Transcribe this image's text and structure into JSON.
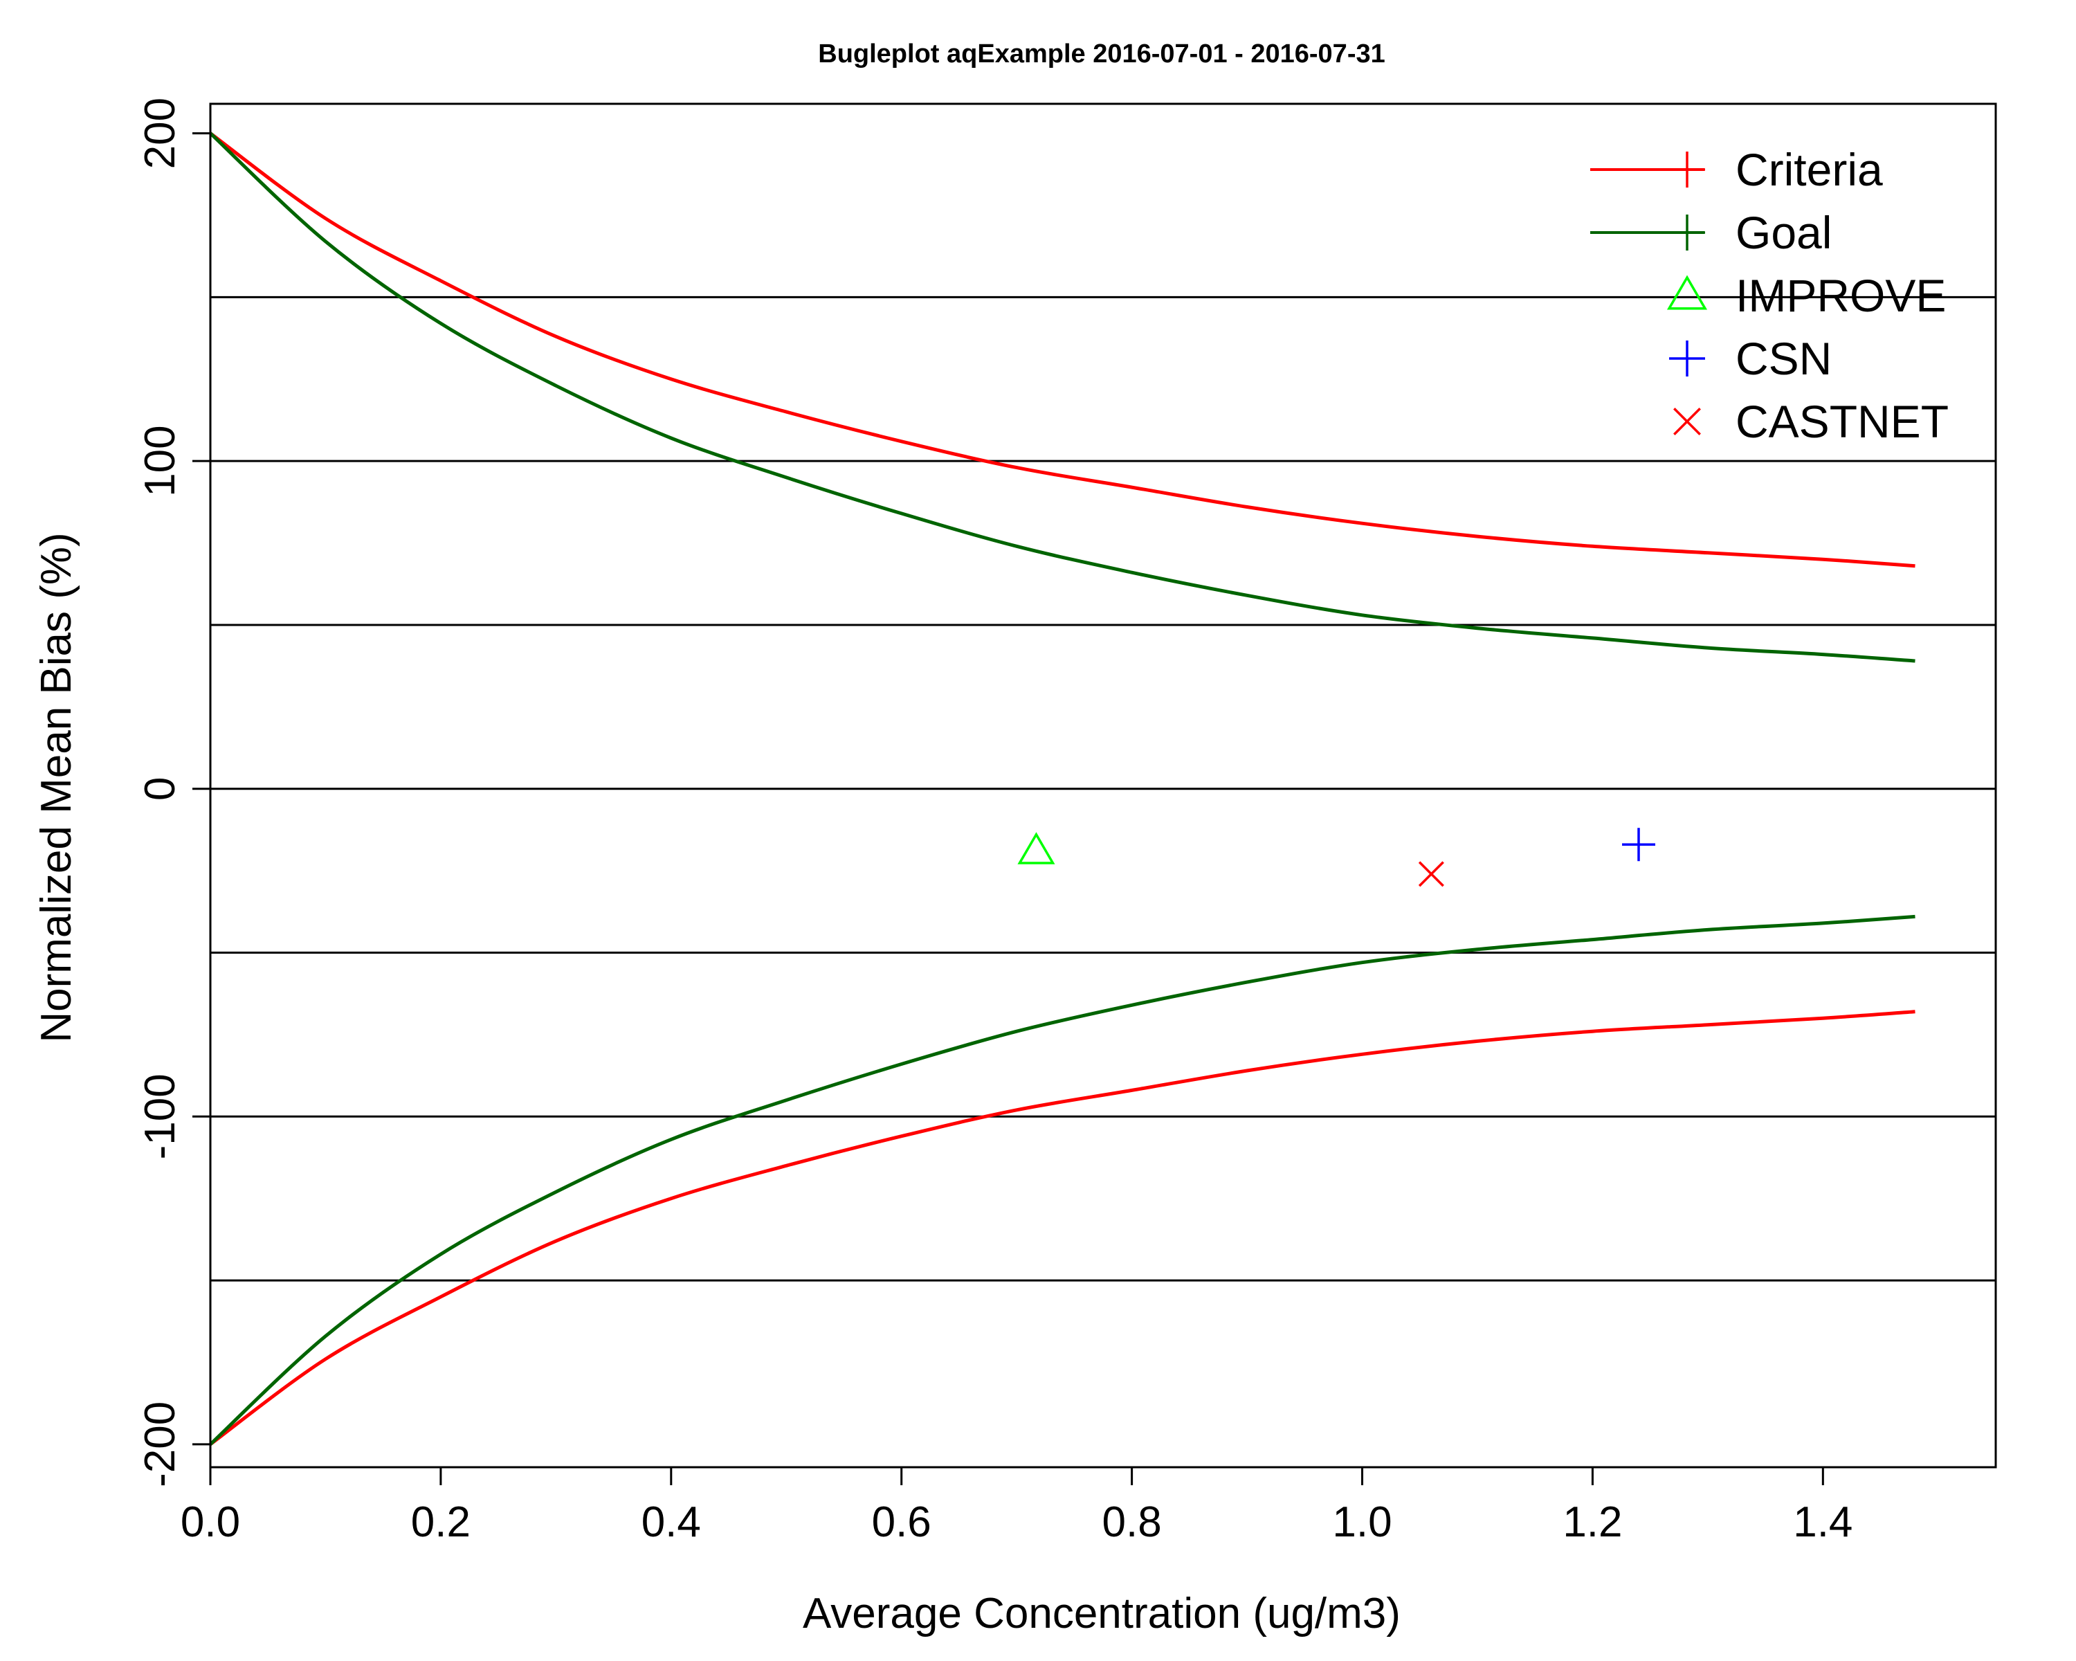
{
  "chart_data": {
    "type": "line",
    "title": "Bugleplot aqExample 2016-07-01 - 2016-07-31",
    "xlabel": "Average Concentration (ug/m3)",
    "ylabel": "Normalized Mean Bias (%)",
    "xlim": [
      0.0,
      1.55
    ],
    "ylim": [
      -207,
      209
    ],
    "x_ticks": [
      0.0,
      0.2,
      0.4,
      0.6,
      0.8,
      1.0,
      1.2,
      1.4
    ],
    "x_tick_labels": [
      "0.0",
      "0.2",
      "0.4",
      "0.6",
      "0.8",
      "1.0",
      "1.2",
      "1.4"
    ],
    "y_ticks": [
      -200,
      -100,
      0,
      100,
      200
    ],
    "y_tick_labels": [
      "-200",
      "-100",
      "0",
      "100",
      "200"
    ],
    "gridlines_y": [
      -150,
      -100,
      -50,
      0,
      50,
      100,
      150
    ],
    "legend_position": "top-right",
    "legend": [
      {
        "label": "Criteria",
        "color": "#ff0000",
        "marker": "plus",
        "line": true
      },
      {
        "label": "Goal",
        "color": "#006400",
        "marker": "plus",
        "line": true
      },
      {
        "label": "IMPROVE",
        "color": "#00ff00",
        "marker": "triangle",
        "line": false
      },
      {
        "label": "CSN",
        "color": "#0000ff",
        "marker": "plus",
        "line": false
      },
      {
        "label": "CASTNET",
        "color": "#ff0000",
        "marker": "cross",
        "line": false
      }
    ],
    "series": [
      {
        "name": "Criteria",
        "color": "#ff0000",
        "x": [
          0.0,
          0.1,
          0.2,
          0.3,
          0.4,
          0.5,
          0.6,
          0.7,
          0.8,
          0.9,
          1.0,
          1.1,
          1.2,
          1.3,
          1.4,
          1.48
        ],
        "upper": [
          200,
          174,
          155,
          138,
          125,
          115,
          106,
          98,
          92,
          86,
          81,
          77,
          74,
          72,
          70,
          68
        ],
        "lower": [
          -200,
          -174,
          -155,
          -138,
          -125,
          -115,
          -106,
          -98,
          -92,
          -86,
          -81,
          -77,
          -74,
          -72,
          -70,
          -68
        ]
      },
      {
        "name": "Goal",
        "color": "#006400",
        "x": [
          0.0,
          0.1,
          0.2,
          0.3,
          0.4,
          0.5,
          0.6,
          0.7,
          0.8,
          0.9,
          1.0,
          1.1,
          1.2,
          1.3,
          1.4,
          1.48
        ],
        "upper": [
          200,
          167,
          142,
          123,
          107,
          95,
          84,
          74,
          66,
          59,
          53,
          49,
          46,
          43,
          41,
          39
        ],
        "lower": [
          -200,
          -167,
          -142,
          -123,
          -107,
          -95,
          -84,
          -74,
          -66,
          -59,
          -53,
          -49,
          -46,
          -43,
          -41,
          -39
        ]
      }
    ],
    "points": [
      {
        "name": "IMPROVE",
        "x": 0.717,
        "y": -19,
        "color": "#00ff00",
        "marker": "triangle"
      },
      {
        "name": "CSN",
        "x": 1.24,
        "y": -17,
        "color": "#0000ff",
        "marker": "plus"
      },
      {
        "name": "CASTNET",
        "x": 1.06,
        "y": -26,
        "color": "#ff0000",
        "marker": "cross"
      }
    ]
  }
}
